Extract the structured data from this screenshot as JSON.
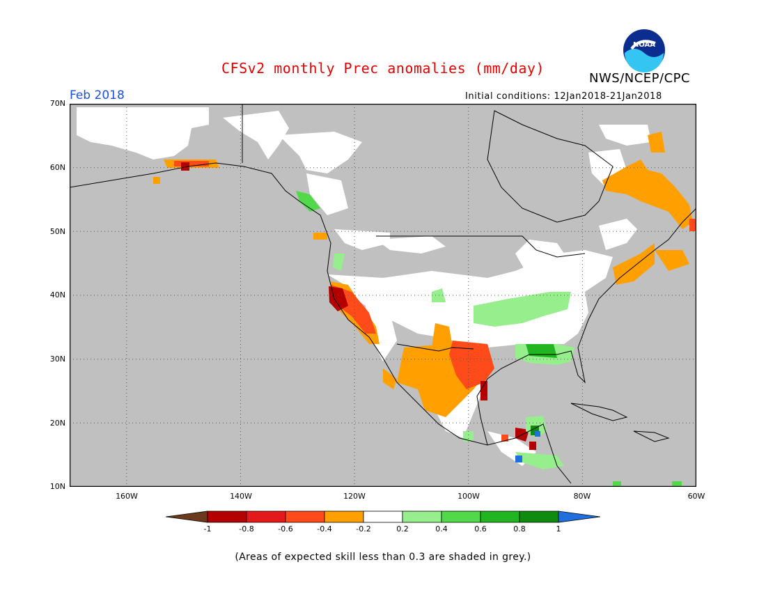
{
  "header": {
    "title": "CFSv2 monthly Prec anomalies (mm/day)",
    "agency": "NWS/NCEP/CPC",
    "period": "Feb 2018",
    "initial_conditions": "Initial conditions: 12Jan2018-21Jan2018",
    "logo_text": "NOAA"
  },
  "map": {
    "lat_labels": [
      "70N",
      "60N",
      "50N",
      "40N",
      "30N",
      "20N",
      "10N"
    ],
    "lon_labels": [
      "160W",
      "140W",
      "120W",
      "100W",
      "80W",
      "60W"
    ],
    "colors": {
      "skill_mask": "#c0c0c0",
      "land_ocean_unmasked": "#ffffff"
    }
  },
  "colorbar": {
    "labels": [
      "-1",
      "-0.8",
      "-0.6",
      "-0.4",
      "-0.2",
      "0.2",
      "0.4",
      "0.6",
      "0.8",
      "1"
    ],
    "colors": [
      "#6b3a1c",
      "#b40000",
      "#e41a1a",
      "#ff4a1a",
      "#ff9f00",
      "#ffffff",
      "#96ee8c",
      "#52d94a",
      "#22b522",
      "#0f8c0f",
      "#1f6fde"
    ]
  },
  "footnote": "(Areas of expected skill less than 0.3 are shaded in grey.)"
}
